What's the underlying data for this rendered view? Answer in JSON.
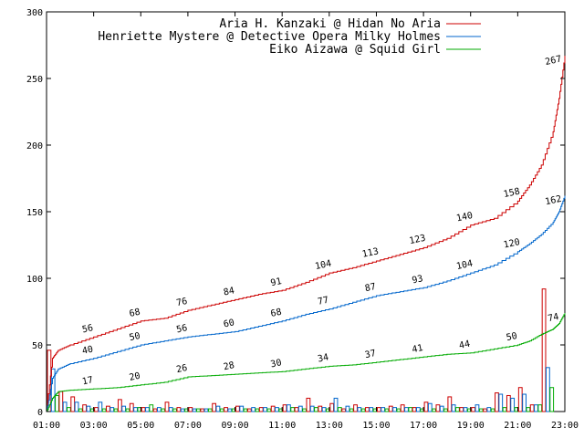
{
  "chart_data": {
    "type": "line",
    "title": "",
    "xlabel": "",
    "ylabel": "",
    "ylim": [
      0,
      300
    ],
    "yticks": [
      0,
      50,
      100,
      150,
      200,
      250,
      300
    ],
    "xlim": [
      "01:00",
      "23:00"
    ],
    "xticks": [
      "01:00",
      "03:00",
      "05:00",
      "07:00",
      "09:00",
      "11:00",
      "13:00",
      "15:00",
      "17:00",
      "19:00",
      "21:00",
      "23:00"
    ],
    "grid": false,
    "legend_position": "top-right",
    "series": [
      {
        "name": "Aria H. Kanzaki @ Hidan No Aria",
        "color": "#cc0000",
        "x": [
          "01:00",
          "01:15",
          "01:30",
          "02:00",
          "03:00",
          "04:00",
          "05:00",
          "06:00",
          "07:00",
          "08:00",
          "09:00",
          "10:00",
          "11:00",
          "12:00",
          "13:00",
          "14:00",
          "15:00",
          "16:00",
          "17:00",
          "18:00",
          "19:00",
          "20:00",
          "21:00",
          "21:30",
          "22:00",
          "22:30",
          "22:45",
          "23:00"
        ],
        "y": [
          0,
          40,
          46,
          50,
          56,
          62,
          68,
          70,
          76,
          80,
          84,
          88,
          91,
          97,
          104,
          108,
          113,
          118,
          123,
          130,
          140,
          145,
          158,
          170,
          185,
          210,
          235,
          267
        ],
        "labels": [
          [
            "03:00",
            56
          ],
          [
            "05:00",
            68
          ],
          [
            "07:00",
            76
          ],
          [
            "09:00",
            84
          ],
          [
            "11:00",
            91
          ],
          [
            "13:00",
            104
          ],
          [
            "15:00",
            113
          ],
          [
            "17:00",
            123
          ],
          [
            "19:00",
            140
          ],
          [
            "21:00",
            158
          ],
          [
            "23:00",
            267
          ]
        ]
      },
      {
        "name": "Henriette Mystere @ Detective Opera Milky Holmes",
        "color": "#0066cc",
        "x": [
          "01:00",
          "01:15",
          "01:30",
          "02:00",
          "03:00",
          "04:00",
          "05:00",
          "06:00",
          "07:00",
          "08:00",
          "09:00",
          "10:00",
          "11:00",
          "12:00",
          "13:00",
          "14:00",
          "15:00",
          "16:00",
          "17:00",
          "18:00",
          "19:00",
          "20:00",
          "21:00",
          "21:30",
          "22:00",
          "22:30",
          "22:45",
          "23:00"
        ],
        "y": [
          0,
          25,
          32,
          36,
          40,
          45,
          50,
          53,
          56,
          58,
          60,
          64,
          68,
          73,
          77,
          82,
          87,
          90,
          93,
          98,
          104,
          110,
          120,
          126,
          133,
          142,
          150,
          162
        ],
        "labels": [
          [
            "03:00",
            40
          ],
          [
            "05:00",
            50
          ],
          [
            "07:00",
            56
          ],
          [
            "09:00",
            60
          ],
          [
            "11:00",
            68
          ],
          [
            "13:00",
            77
          ],
          [
            "15:00",
            87
          ],
          [
            "17:00",
            93
          ],
          [
            "19:00",
            104
          ],
          [
            "21:00",
            120
          ],
          [
            "23:00",
            162
          ]
        ]
      },
      {
        "name": "Eiko Aizawa @ Squid Girl",
        "color": "#00aa00",
        "x": [
          "01:00",
          "01:15",
          "01:30",
          "02:00",
          "03:00",
          "04:00",
          "05:00",
          "06:00",
          "07:00",
          "08:00",
          "09:00",
          "10:00",
          "11:00",
          "12:00",
          "13:00",
          "14:00",
          "15:00",
          "16:00",
          "17:00",
          "18:00",
          "19:00",
          "20:00",
          "21:00",
          "21:30",
          "22:00",
          "22:30",
          "22:45",
          "23:00"
        ],
        "y": [
          0,
          10,
          15,
          16,
          17,
          18,
          20,
          22,
          26,
          27,
          28,
          29,
          30,
          32,
          34,
          35,
          37,
          39,
          41,
          43,
          44,
          47,
          50,
          53,
          58,
          62,
          66,
          74
        ],
        "labels": [
          [
            "03:00",
            17
          ],
          [
            "05:00",
            20
          ],
          [
            "07:00",
            26
          ],
          [
            "09:00",
            28
          ],
          [
            "11:00",
            30
          ],
          [
            "13:00",
            34
          ],
          [
            "15:00",
            37
          ],
          [
            "17:00",
            41
          ],
          [
            "19:00",
            44
          ],
          [
            "21:00",
            50
          ],
          [
            "23:00",
            74
          ]
        ]
      }
    ],
    "bars": {
      "description_only_for_render": "",
      "categories": [
        "01:00",
        "01:30",
        "02:00",
        "02:30",
        "03:00",
        "03:30",
        "04:00",
        "04:30",
        "05:00",
        "05:30",
        "06:00",
        "06:30",
        "07:00",
        "07:30",
        "08:00",
        "08:30",
        "09:00",
        "09:30",
        "10:00",
        "10:30",
        "11:00",
        "11:30",
        "12:00",
        "12:30",
        "13:00",
        "13:30",
        "14:00",
        "14:30",
        "15:00",
        "15:30",
        "16:00",
        "16:30",
        "17:00",
        "17:30",
        "18:00",
        "18:30",
        "19:00",
        "19:30",
        "20:00",
        "20:30",
        "21:00",
        "21:30",
        "22:00",
        "22:30"
      ],
      "red": [
        46,
        15,
        11,
        5,
        3,
        4,
        9,
        6,
        3,
        2,
        7,
        3,
        3,
        2,
        6,
        3,
        4,
        2,
        3,
        4,
        5,
        3,
        10,
        4,
        6,
        2,
        5,
        3,
        3,
        4,
        5,
        3,
        7,
        5,
        11,
        3,
        3,
        2,
        14,
        12,
        18,
        5,
        92,
        0
      ],
      "blue": [
        32,
        7,
        7,
        4,
        7,
        3,
        4,
        3,
        3,
        3,
        3,
        2,
        2,
        2,
        4,
        2,
        4,
        3,
        3,
        3,
        5,
        4,
        4,
        3,
        10,
        4,
        3,
        3,
        3,
        3,
        3,
        3,
        6,
        4,
        5,
        3,
        5,
        3,
        13,
        10,
        13,
        5,
        33,
        0
      ],
      "green": [
        12,
        3,
        2,
        2,
        2,
        2,
        2,
        3,
        5,
        2,
        2,
        2,
        2,
        2,
        2,
        2,
        2,
        2,
        2,
        2,
        3,
        2,
        3,
        2,
        3,
        2,
        2,
        2,
        2,
        2,
        3,
        2,
        2,
        2,
        3,
        2,
        2,
        2,
        3,
        3,
        3,
        5,
        18,
        0
      ]
    }
  }
}
